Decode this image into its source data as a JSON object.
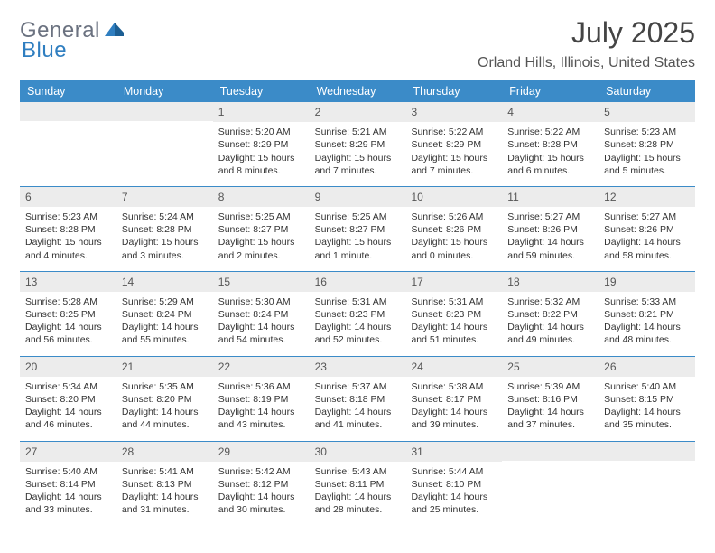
{
  "brand": {
    "part1": "General",
    "part2": "Blue"
  },
  "title": "July 2025",
  "location": "Orland Hills, Illinois, United States",
  "colors": {
    "header_bg": "#3b8bc8",
    "header_text": "#ffffff",
    "daynum_bg": "#ececec",
    "week_divider": "#3b8bc8",
    "text": "#333333",
    "logo_gray": "#6b7280",
    "logo_blue": "#2f7ec0",
    "page_bg": "#ffffff"
  },
  "dow": [
    "Sunday",
    "Monday",
    "Tuesday",
    "Wednesday",
    "Thursday",
    "Friday",
    "Saturday"
  ],
  "weeks": [
    [
      {
        "blank": true
      },
      {
        "blank": true
      },
      {
        "n": "1",
        "sr": "5:20 AM",
        "ss": "8:29 PM",
        "dl": "15 hours and 8 minutes."
      },
      {
        "n": "2",
        "sr": "5:21 AM",
        "ss": "8:29 PM",
        "dl": "15 hours and 7 minutes."
      },
      {
        "n": "3",
        "sr": "5:22 AM",
        "ss": "8:29 PM",
        "dl": "15 hours and 7 minutes."
      },
      {
        "n": "4",
        "sr": "5:22 AM",
        "ss": "8:28 PM",
        "dl": "15 hours and 6 minutes."
      },
      {
        "n": "5",
        "sr": "5:23 AM",
        "ss": "8:28 PM",
        "dl": "15 hours and 5 minutes."
      }
    ],
    [
      {
        "n": "6",
        "sr": "5:23 AM",
        "ss": "8:28 PM",
        "dl": "15 hours and 4 minutes."
      },
      {
        "n": "7",
        "sr": "5:24 AM",
        "ss": "8:28 PM",
        "dl": "15 hours and 3 minutes."
      },
      {
        "n": "8",
        "sr": "5:25 AM",
        "ss": "8:27 PM",
        "dl": "15 hours and 2 minutes."
      },
      {
        "n": "9",
        "sr": "5:25 AM",
        "ss": "8:27 PM",
        "dl": "15 hours and 1 minute."
      },
      {
        "n": "10",
        "sr": "5:26 AM",
        "ss": "8:26 PM",
        "dl": "15 hours and 0 minutes."
      },
      {
        "n": "11",
        "sr": "5:27 AM",
        "ss": "8:26 PM",
        "dl": "14 hours and 59 minutes."
      },
      {
        "n": "12",
        "sr": "5:27 AM",
        "ss": "8:26 PM",
        "dl": "14 hours and 58 minutes."
      }
    ],
    [
      {
        "n": "13",
        "sr": "5:28 AM",
        "ss": "8:25 PM",
        "dl": "14 hours and 56 minutes."
      },
      {
        "n": "14",
        "sr": "5:29 AM",
        "ss": "8:24 PM",
        "dl": "14 hours and 55 minutes."
      },
      {
        "n": "15",
        "sr": "5:30 AM",
        "ss": "8:24 PM",
        "dl": "14 hours and 54 minutes."
      },
      {
        "n": "16",
        "sr": "5:31 AM",
        "ss": "8:23 PM",
        "dl": "14 hours and 52 minutes."
      },
      {
        "n": "17",
        "sr": "5:31 AM",
        "ss": "8:23 PM",
        "dl": "14 hours and 51 minutes."
      },
      {
        "n": "18",
        "sr": "5:32 AM",
        "ss": "8:22 PM",
        "dl": "14 hours and 49 minutes."
      },
      {
        "n": "19",
        "sr": "5:33 AM",
        "ss": "8:21 PM",
        "dl": "14 hours and 48 minutes."
      }
    ],
    [
      {
        "n": "20",
        "sr": "5:34 AM",
        "ss": "8:20 PM",
        "dl": "14 hours and 46 minutes."
      },
      {
        "n": "21",
        "sr": "5:35 AM",
        "ss": "8:20 PM",
        "dl": "14 hours and 44 minutes."
      },
      {
        "n": "22",
        "sr": "5:36 AM",
        "ss": "8:19 PM",
        "dl": "14 hours and 43 minutes."
      },
      {
        "n": "23",
        "sr": "5:37 AM",
        "ss": "8:18 PM",
        "dl": "14 hours and 41 minutes."
      },
      {
        "n": "24",
        "sr": "5:38 AM",
        "ss": "8:17 PM",
        "dl": "14 hours and 39 minutes."
      },
      {
        "n": "25",
        "sr": "5:39 AM",
        "ss": "8:16 PM",
        "dl": "14 hours and 37 minutes."
      },
      {
        "n": "26",
        "sr": "5:40 AM",
        "ss": "8:15 PM",
        "dl": "14 hours and 35 minutes."
      }
    ],
    [
      {
        "n": "27",
        "sr": "5:40 AM",
        "ss": "8:14 PM",
        "dl": "14 hours and 33 minutes."
      },
      {
        "n": "28",
        "sr": "5:41 AM",
        "ss": "8:13 PM",
        "dl": "14 hours and 31 minutes."
      },
      {
        "n": "29",
        "sr": "5:42 AM",
        "ss": "8:12 PM",
        "dl": "14 hours and 30 minutes."
      },
      {
        "n": "30",
        "sr": "5:43 AM",
        "ss": "8:11 PM",
        "dl": "14 hours and 28 minutes."
      },
      {
        "n": "31",
        "sr": "5:44 AM",
        "ss": "8:10 PM",
        "dl": "14 hours and 25 minutes."
      },
      {
        "blank": true
      },
      {
        "blank": true
      }
    ]
  ],
  "labels": {
    "sunrise": "Sunrise:",
    "sunset": "Sunset:",
    "daylight": "Daylight:"
  }
}
